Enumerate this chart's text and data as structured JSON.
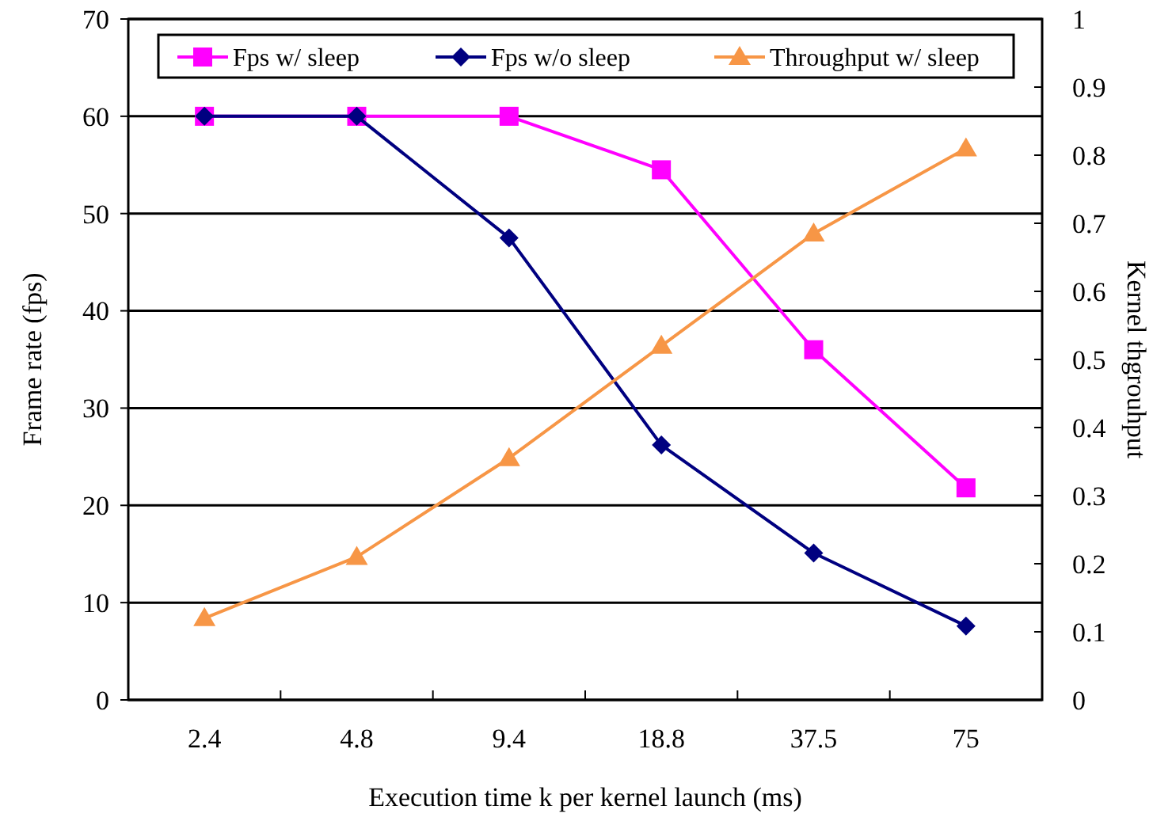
{
  "chart_data": {
    "type": "line",
    "xlabel": "Execution time k per kernel launch (ms)",
    "ylabel": "Frame rate (fps)",
    "y2label": "Kernel thgrouhput",
    "categories": [
      "2.4",
      "4.8",
      "9.4",
      "18.8",
      "37.5",
      "75"
    ],
    "series": [
      {
        "name": "Fps w/ sleep",
        "color": "#ff00ff",
        "marker": "square",
        "values": [
          60,
          60,
          60,
          54.5,
          36,
          21.8
        ]
      },
      {
        "name": "Fps w/o sleep",
        "color": "#000080",
        "marker": "diamond",
        "values": [
          60,
          60,
          47.5,
          26.2,
          15.1,
          7.6
        ]
      },
      {
        "name": "Throughput w/ sleep",
        "color": "#f79646",
        "marker": "triangle",
        "axis": "y2",
        "values": [
          0.12,
          0.21,
          0.355,
          0.52,
          0.685,
          0.81
        ]
      }
    ],
    "ylim": [
      0,
      70
    ],
    "yticks": [
      0,
      10,
      20,
      30,
      40,
      50,
      60,
      70
    ],
    "y2lim": [
      0,
      1
    ],
    "y2ticks": [
      0,
      0.1,
      0.2,
      0.3,
      0.4,
      0.5,
      0.6,
      0.7,
      0.8,
      0.9,
      1
    ],
    "grid": "y",
    "legend": "top"
  }
}
